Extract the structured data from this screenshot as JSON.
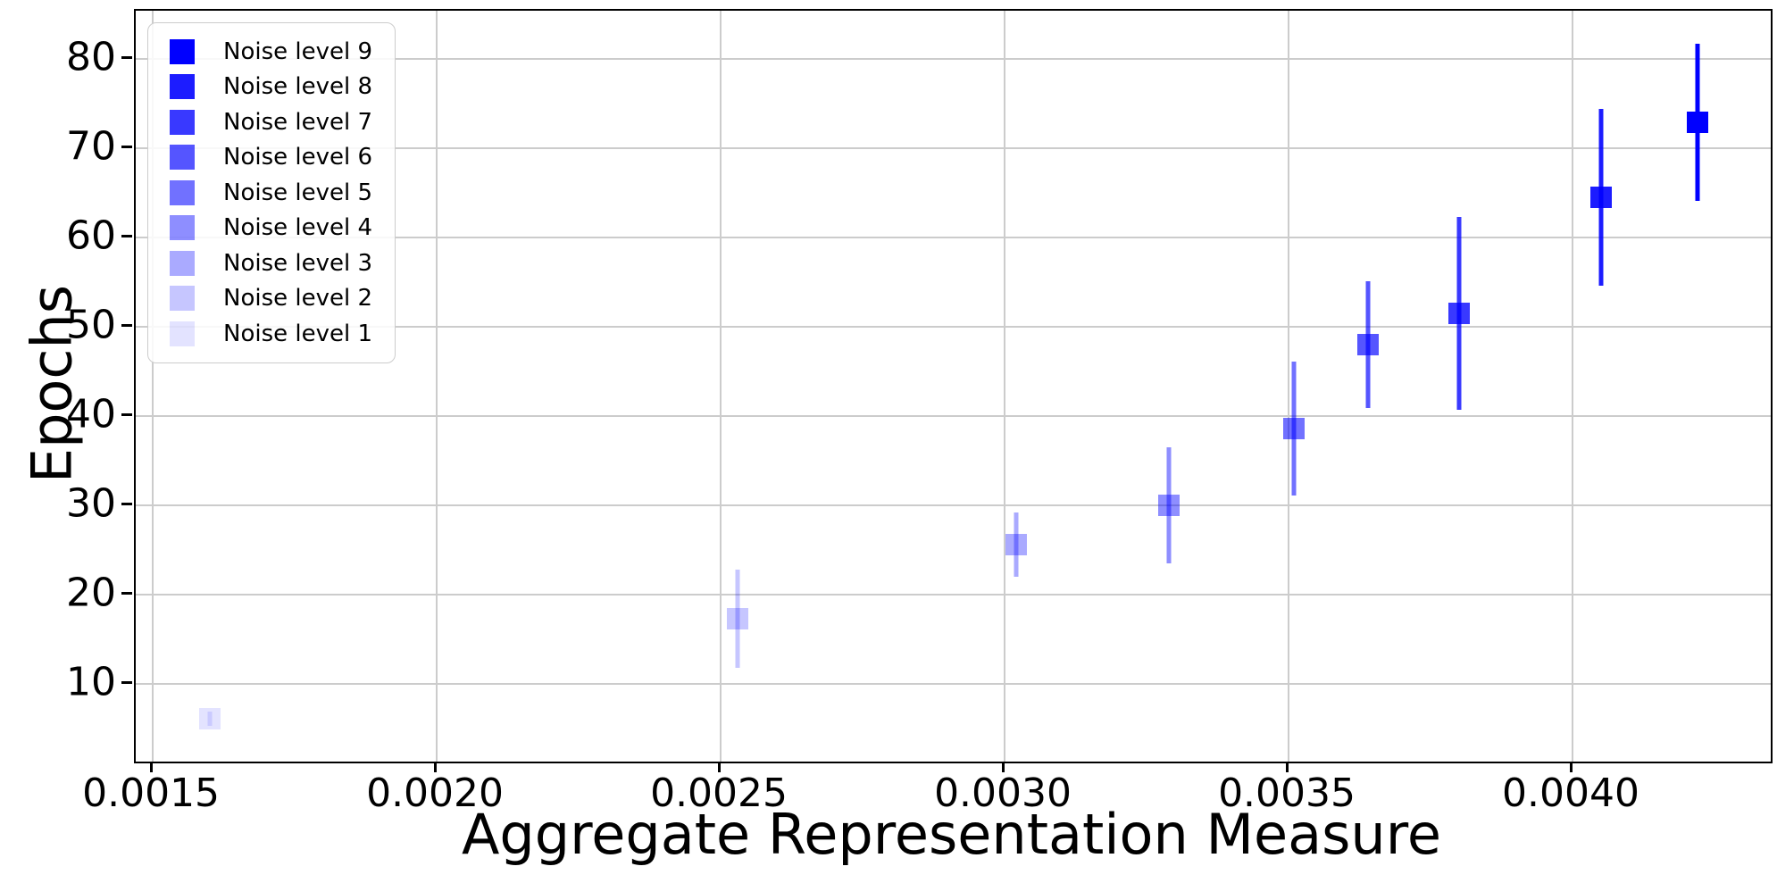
{
  "chart_data": {
    "type": "scatter",
    "title": "",
    "xlabel": "Aggregate Representation Measure",
    "ylabel": "Epochs",
    "xlim": [
      0.00147,
      0.004349
    ],
    "ylim": [
      1.3,
      85.4
    ],
    "x_ticks": [
      0.0015,
      0.002,
      0.0025,
      0.003,
      0.0035,
      0.004
    ],
    "x_tick_labels": [
      "0.0015",
      "0.0020",
      "0.0025",
      "0.0030",
      "0.0035",
      "0.0040"
    ],
    "y_ticks": [
      10,
      20,
      30,
      40,
      50,
      60,
      70,
      80
    ],
    "y_tick_labels": [
      "10",
      "20",
      "30",
      "40",
      "50",
      "60",
      "70",
      "80"
    ],
    "grid": true,
    "grid_color": "#cccccc",
    "marker": "square",
    "marker_base_color": "#0000ff",
    "errorbar_caps": false,
    "legend_position": "upper-left",
    "series": [
      {
        "name": "Noise level 1",
        "x": 0.0016,
        "y": 6.1,
        "yerr": 0.8,
        "alpha": 0.111,
        "color_flat": "#e3e3ff"
      },
      {
        "name": "Noise level 2",
        "x": 0.00253,
        "y": 17.3,
        "yerr": 5.5,
        "alpha": 0.222,
        "color_flat": "#c6c6ff"
      },
      {
        "name": "Noise level 3",
        "x": 0.00302,
        "y": 25.6,
        "yerr": 3.6,
        "alpha": 0.333,
        "color_flat": "#aaaaff"
      },
      {
        "name": "Noise level 4",
        "x": 0.00329,
        "y": 30.0,
        "yerr": 6.5,
        "alpha": 0.444,
        "color_flat": "#8e8eff"
      },
      {
        "name": "Noise level 5",
        "x": 0.00351,
        "y": 38.6,
        "yerr": 7.5,
        "alpha": 0.556,
        "color_flat": "#7171ff"
      },
      {
        "name": "Noise level 6",
        "x": 0.00364,
        "y": 48.0,
        "yerr": 7.1,
        "alpha": 0.667,
        "color_flat": "#5555ff"
      },
      {
        "name": "Noise level 7",
        "x": 0.0038,
        "y": 51.5,
        "yerr": 10.8,
        "alpha": 0.778,
        "color_flat": "#3939ff"
      },
      {
        "name": "Noise level 8",
        "x": 0.00405,
        "y": 64.5,
        "yerr": 9.9,
        "alpha": 0.889,
        "color_flat": "#1c1cff"
      },
      {
        "name": "Noise level 9",
        "x": 0.00422,
        "y": 72.9,
        "yerr": 8.8,
        "alpha": 1.0,
        "color_flat": "#0000ff"
      }
    ],
    "legend_order": [
      "Noise level 9",
      "Noise level 8",
      "Noise level 7",
      "Noise level 6",
      "Noise level 5",
      "Noise level 4",
      "Noise level 3",
      "Noise level 2",
      "Noise level 1"
    ]
  }
}
